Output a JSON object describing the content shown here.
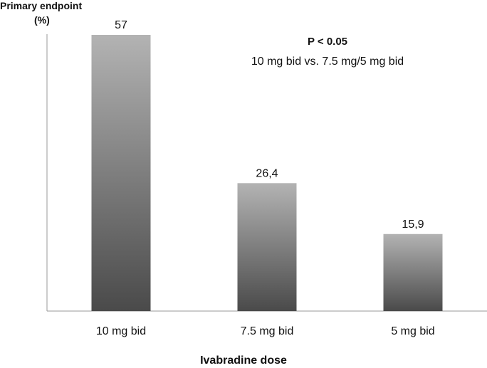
{
  "chart_data": {
    "type": "bar",
    "categories": [
      "10 mg bid",
      "7.5 mg bid",
      "5 mg bid"
    ],
    "values": [
      57,
      26.4,
      15.9
    ],
    "value_labels": [
      "57",
      "26,4",
      "15,9"
    ],
    "ylabel_line1": "Primary endpoint",
    "ylabel_line2": "(%)",
    "xlabel": "Ivabradine dose",
    "annotation_title": "P < 0.05",
    "annotation_text": "10 mg bid vs. 7.5 mg/5 mg bid",
    "ylim": [
      0,
      57
    ],
    "grid": false,
    "legend": "none",
    "colors": {
      "bar_top": "#b3b3b3",
      "bar_bottom": "#4a4a4a",
      "axis": "#9a9a9a",
      "text": "#111111"
    }
  }
}
